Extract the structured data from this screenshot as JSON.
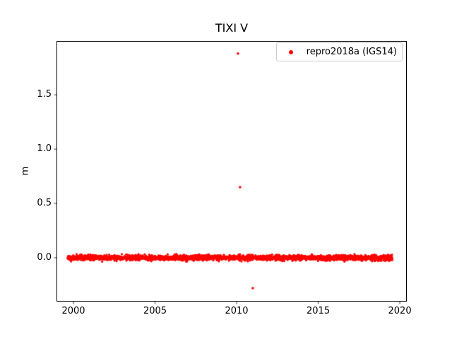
{
  "figure": {
    "background": "#ffffff"
  },
  "chart_data": {
    "type": "scatter",
    "title": "TIXI V",
    "xlabel": "",
    "ylabel": "m",
    "grid": false,
    "marker_color": "#ff0000",
    "xlim": [
      1998.96,
      2020.43
    ],
    "ylim": [
      -0.404,
      1.996
    ],
    "xticks": {
      "values": [
        2000,
        2005,
        2010,
        2015,
        2020
      ],
      "labels": [
        "2000",
        "2005",
        "2010",
        "2015",
        "2020"
      ]
    },
    "yticks": {
      "values": [
        0.0,
        0.5,
        1.0,
        1.5
      ],
      "labels": [
        "0.0",
        "0.5",
        "1.0",
        "1.5"
      ]
    },
    "legend": {
      "position": "upper right",
      "entries": [
        {
          "label": "repro2018a (IGS14)",
          "marker": "dot",
          "color": "#ff0000"
        }
      ]
    },
    "series": [
      {
        "name": "repro2018a (IGS14)",
        "color": "#ff0000",
        "band": {
          "description": "dense daily residual scatter near zero",
          "x_start": 1999.65,
          "x_end": 2019.55,
          "y_mean": 0.0,
          "y_std": 0.012,
          "y_min": -0.04,
          "y_max": 0.04,
          "n_points": 2600
        },
        "outliers": [
          [
            2010.08,
            1.88
          ],
          [
            2010.21,
            0.65
          ],
          [
            2010.99,
            -0.28
          ]
        ]
      }
    ]
  }
}
